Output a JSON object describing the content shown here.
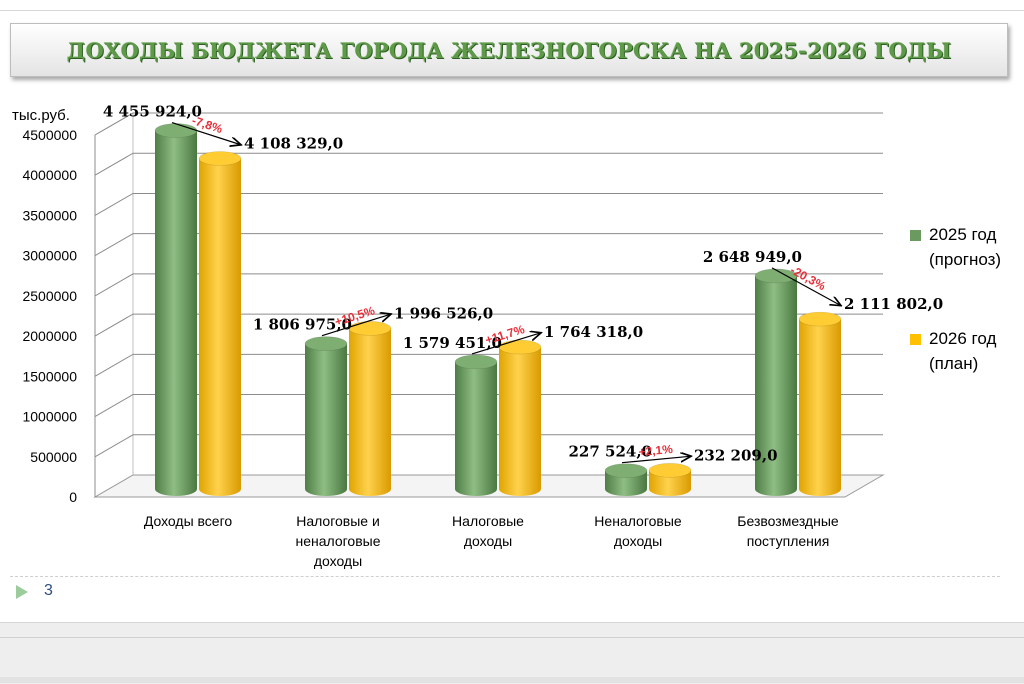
{
  "title": "ДОХОДЫ БЮДЖЕТА ГОРОДА ЖЕЛЕЗНОГОРСКА НА 2025-2026 ГОДЫ",
  "page_number": "3",
  "colors": {
    "green": "#6b9a61",
    "yellow": "#ffc000",
    "annotation": "#e8303a"
  },
  "chart_data": {
    "type": "bar",
    "unit_label": "тыс.руб.",
    "ylim": [
      0,
      4500000
    ],
    "yticks": [
      "0",
      "500000",
      "1000000",
      "1500000",
      "2000000",
      "2500000",
      "3000000",
      "3500000",
      "4000000",
      "4500000"
    ],
    "categories": [
      [
        "Доходы всего"
      ],
      [
        "Налоговые и",
        "неналоговые",
        "доходы"
      ],
      [
        "Налоговые",
        "доходы"
      ],
      [
        "Неналоговые",
        "доходы"
      ],
      [
        "Безвозмездные",
        "поступления"
      ]
    ],
    "series": [
      {
        "name": "2025 год (прогноз)",
        "values": [
          4455924.0,
          1806975.0,
          1579451.0,
          227524.0,
          2648949.0
        ],
        "labels": [
          "4 455 924,0",
          "1 806 975,0",
          "1 579 451,0",
          "227 524,0",
          "2 648 949,0"
        ]
      },
      {
        "name": "2026 год (план)",
        "values": [
          4108329.0,
          1996526.0,
          1764318.0,
          232209.0,
          2111802.0
        ],
        "labels": [
          "4 108 329,0",
          "1 996 526,0",
          "1 764 318,0",
          "232 209,0",
          "2 111 802,0"
        ]
      }
    ],
    "changes": [
      "-7,8%",
      "+10,5%",
      "+11,7%",
      "+2,1%",
      "-20,3%"
    ],
    "grid": true,
    "legend_position": "right"
  },
  "legend": [
    {
      "lines": [
        "2025 год",
        "(прогноз)"
      ]
    },
    {
      "lines": [
        "2026 год",
        "(план)"
      ]
    }
  ]
}
